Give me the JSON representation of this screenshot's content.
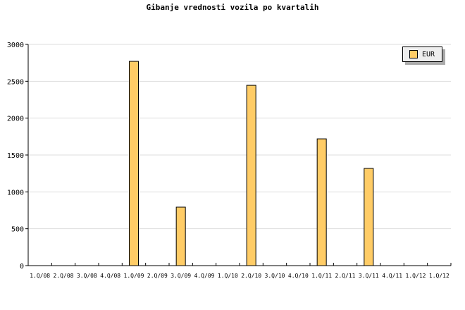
{
  "chart_data": {
    "type": "bar",
    "title": "Gibanje vrednosti vozila po kvartalih",
    "categories": [
      "1.Q/08",
      "2.Q/08",
      "3.Q/08",
      "4.Q/08",
      "1.Q/09",
      "2.Q/09",
      "3.Q/09",
      "4.Q/09",
      "1.Q/10",
      "2.Q/10",
      "3.Q/10",
      "4.Q/10",
      "1.Q/11",
      "2.Q/11",
      "3.Q/11",
      "4.Q/11",
      "1.Q/12",
      "1.Q/12"
    ],
    "series": [
      {
        "name": "EUR",
        "values": [
          0,
          0,
          0,
          0,
          2770,
          0,
          793,
          0,
          0,
          2445,
          0,
          0,
          1719,
          0,
          1318,
          0,
          0,
          0
        ],
        "color": "#ffcc66"
      }
    ],
    "ylim": [
      0,
      3000
    ],
    "yticks": [
      0,
      500,
      1000,
      1500,
      2000,
      2500,
      3000
    ],
    "grid": true,
    "legend": "top-right"
  }
}
